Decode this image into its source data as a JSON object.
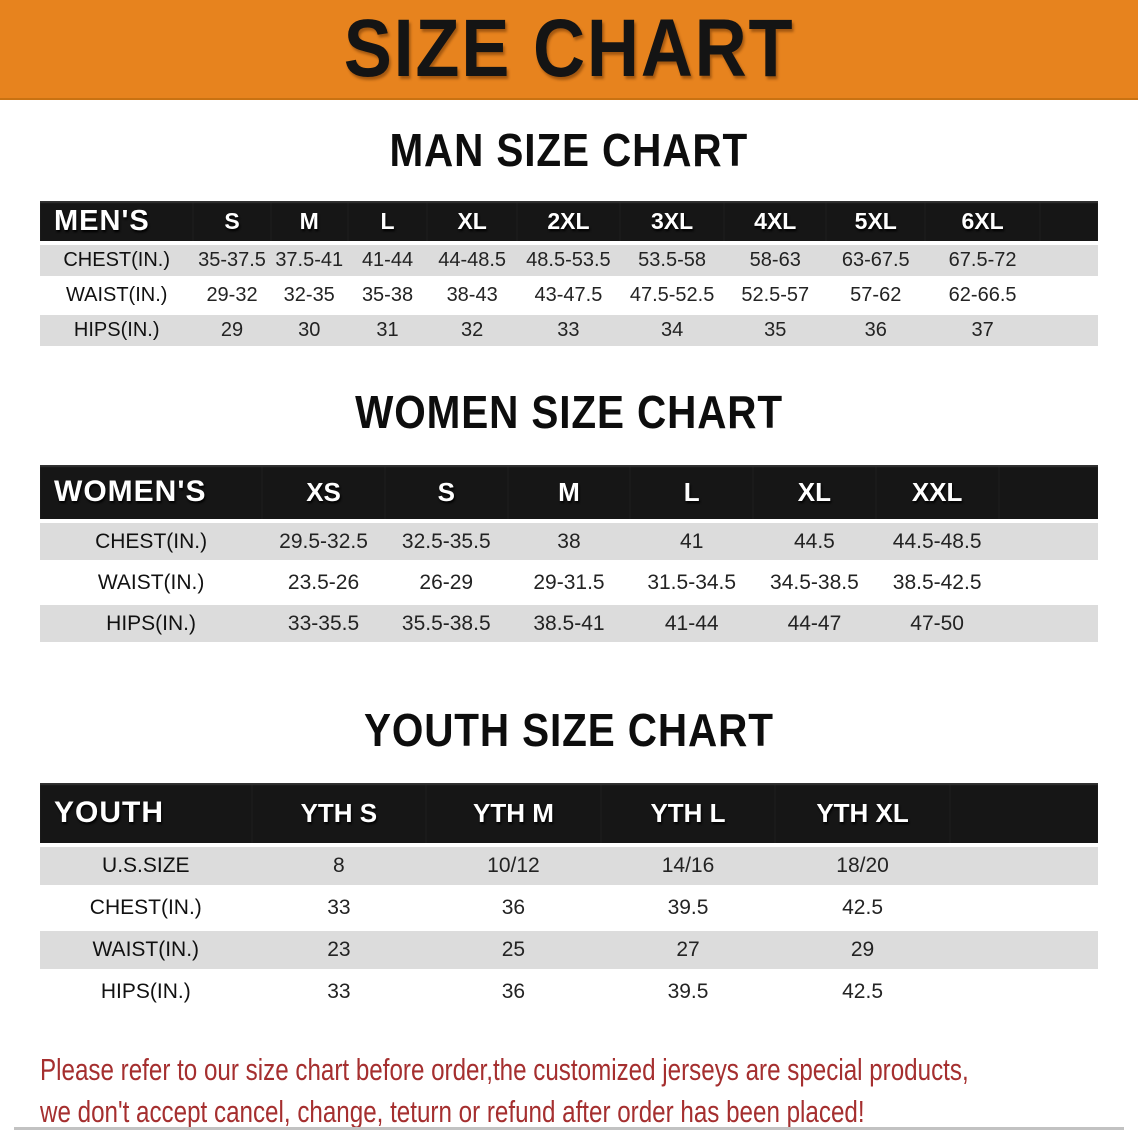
{
  "banner": {
    "title": "SIZE CHART"
  },
  "colors": {
    "banner_bg": "#E7831E",
    "table_header_bg": "#161616",
    "row_stripe": "#DCDCDC",
    "footer_text": "#A52F2F",
    "heading_text": "#0D0D0D"
  },
  "sections": [
    {
      "heading": "MAN SIZE CHART",
      "table": {
        "label": "MEN'S",
        "columns": [
          "S",
          "M",
          "L",
          "XL",
          "2XL",
          "3XL",
          "4XL",
          "5XL",
          "6XL"
        ],
        "rows": [
          {
            "label": "CHEST(IN.)",
            "values": [
              "35-37.5",
              "37.5-41",
              "41-44",
              "44-48.5",
              "48.5-53.5",
              "53.5-58",
              "58-63",
              "63-67.5",
              "67.5-72"
            ]
          },
          {
            "label": "WAIST(IN.)",
            "values": [
              "29-32",
              "32-35",
              "35-38",
              "38-43",
              "43-47.5",
              "47.5-52.5",
              "52.5-57",
              "57-62",
              "62-66.5"
            ]
          },
          {
            "label": "HIPS(IN.)",
            "values": [
              "29",
              "30",
              "31",
              "32",
              "33",
              "34",
              "35",
              "36",
              "37"
            ]
          }
        ]
      }
    },
    {
      "heading": "WOMEN SIZE CHART",
      "table": {
        "label": "WOMEN'S",
        "columns": [
          "XS",
          "S",
          "M",
          "L",
          "XL",
          "XXL"
        ],
        "rows": [
          {
            "label": "CHEST(IN.)",
            "values": [
              "29.5-32.5",
              "32.5-35.5",
              "38",
              "41",
              "44.5",
              "44.5-48.5"
            ]
          },
          {
            "label": "WAIST(IN.)",
            "values": [
              "23.5-26",
              "26-29",
              "29-31.5",
              "31.5-34.5",
              "34.5-38.5",
              "38.5-42.5"
            ]
          },
          {
            "label": "HIPS(IN.)",
            "values": [
              "33-35.5",
              "35.5-38.5",
              "38.5-41",
              "41-44",
              "44-47",
              "47-50"
            ]
          }
        ]
      }
    },
    {
      "heading": "YOUTH SIZE CHART",
      "table": {
        "label": "YOUTH",
        "columns": [
          "YTH S",
          "YTH M",
          "YTH L",
          "YTH XL"
        ],
        "rows": [
          {
            "label": "U.S.SIZE",
            "values": [
              "8",
              "10/12",
              "14/16",
              "18/20"
            ]
          },
          {
            "label": "CHEST(IN.)",
            "values": [
              "33",
              "36",
              "39.5",
              "42.5"
            ]
          },
          {
            "label": "WAIST(IN.)",
            "values": [
              "23",
              "25",
              "27",
              "29"
            ]
          },
          {
            "label": "HIPS(IN.)",
            "values": [
              "33",
              "36",
              "39.5",
              "42.5"
            ]
          }
        ]
      }
    }
  ],
  "footer": {
    "line1": "Please refer to our size chart before order,the customized jerseys are special products,",
    "line2": "we don't accept cancel, change, teturn or refund after order has been placed!"
  }
}
